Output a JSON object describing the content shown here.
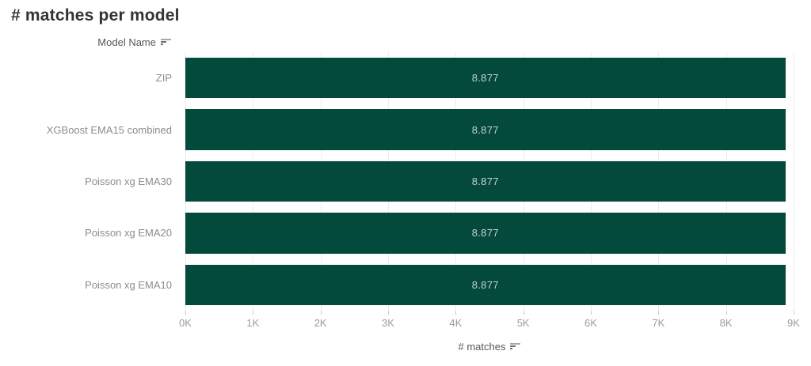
{
  "page": {
    "title": "# matches per model"
  },
  "y_axis": {
    "header": "Model Name",
    "sort_icon": "sort-descending-icon"
  },
  "x_axis": {
    "title": "# matches",
    "sort_icon": "sort-descending-icon"
  },
  "colors": {
    "bar": "#03493c",
    "bar_value_text": "#c9d4d0",
    "title_text": "#333333",
    "row_label_text": "#8c8c8c",
    "axis_title_text": "#575757",
    "tick_label_text": "#9b9b9b",
    "gridline": "#ececec",
    "tick_mark": "#c9c9c9"
  },
  "chart_data": {
    "type": "bar",
    "orientation": "horizontal",
    "title": "# matches per model",
    "categories": [
      "ZIP",
      "XGBoost EMA15 combined",
      "Poisson xg EMA30",
      "Poisson xg EMA20",
      "Poisson xg EMA10"
    ],
    "values": [
      8877,
      8877,
      8877,
      8877,
      8877
    ],
    "value_labels": [
      "8.877",
      "8.877",
      "8.877",
      "8.877",
      "8.877"
    ],
    "xlabel": "# matches",
    "ylabel": "Model Name",
    "x_ticks": [
      "0K",
      "1K",
      "2K",
      "3K",
      "4K",
      "5K",
      "6K",
      "7K",
      "8K",
      "9K"
    ],
    "xlim": [
      0,
      9000
    ],
    "grid": "vertical",
    "legend": "none"
  }
}
